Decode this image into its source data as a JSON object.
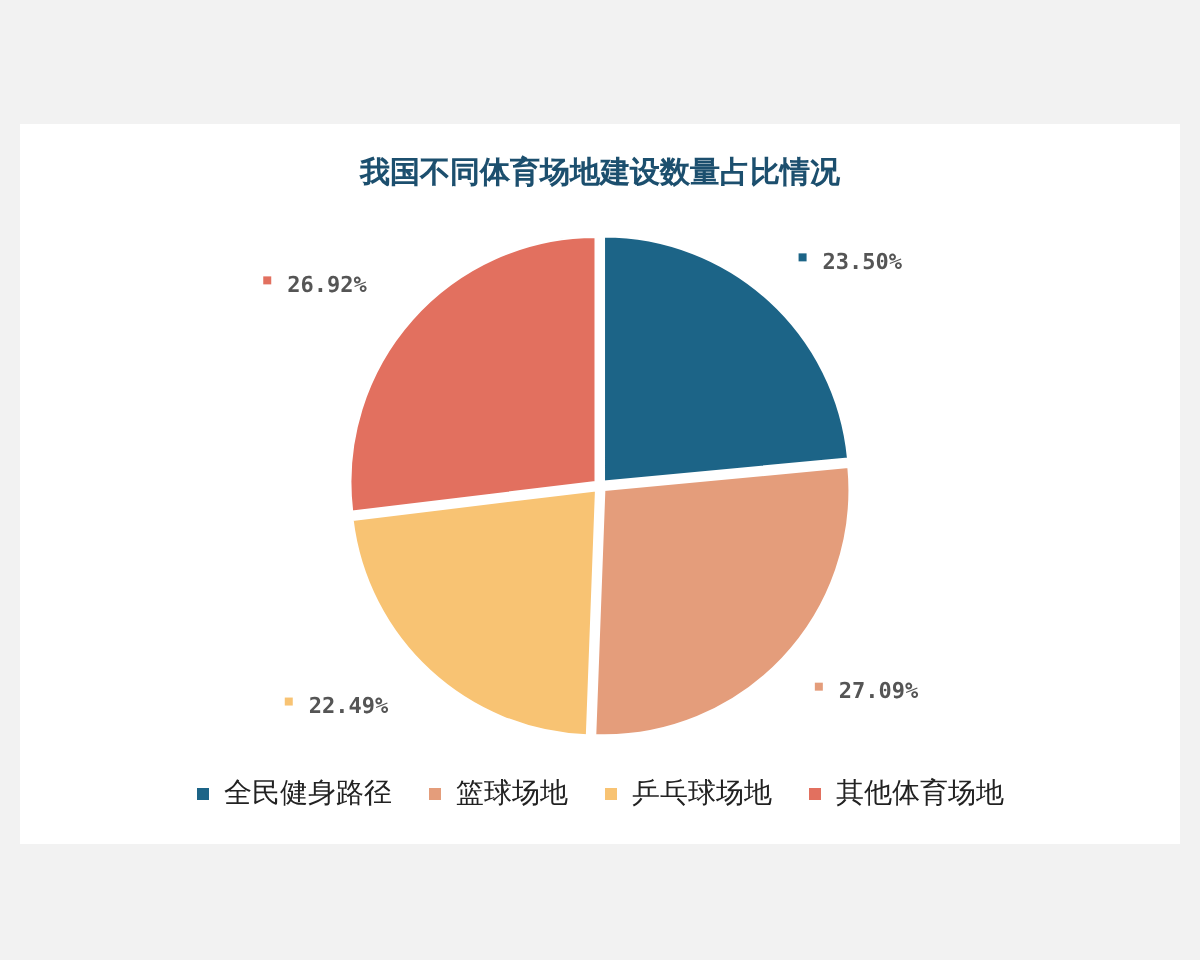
{
  "chart_data": {
    "type": "pie",
    "title": "我国不同体育场地建设数量占比情况",
    "categories": [
      "全民健身路径",
      "篮球场地",
      "乒乓球场地",
      "其他体育场地"
    ],
    "values": [
      23.5,
      27.09,
      22.49,
      26.92
    ],
    "value_labels": [
      "23.50%",
      "27.09%",
      "22.49%",
      "26.92%"
    ],
    "colors": [
      "#1c6487",
      "#e49d7b",
      "#f8c373",
      "#e2705f"
    ],
    "legend": "bottom"
  }
}
